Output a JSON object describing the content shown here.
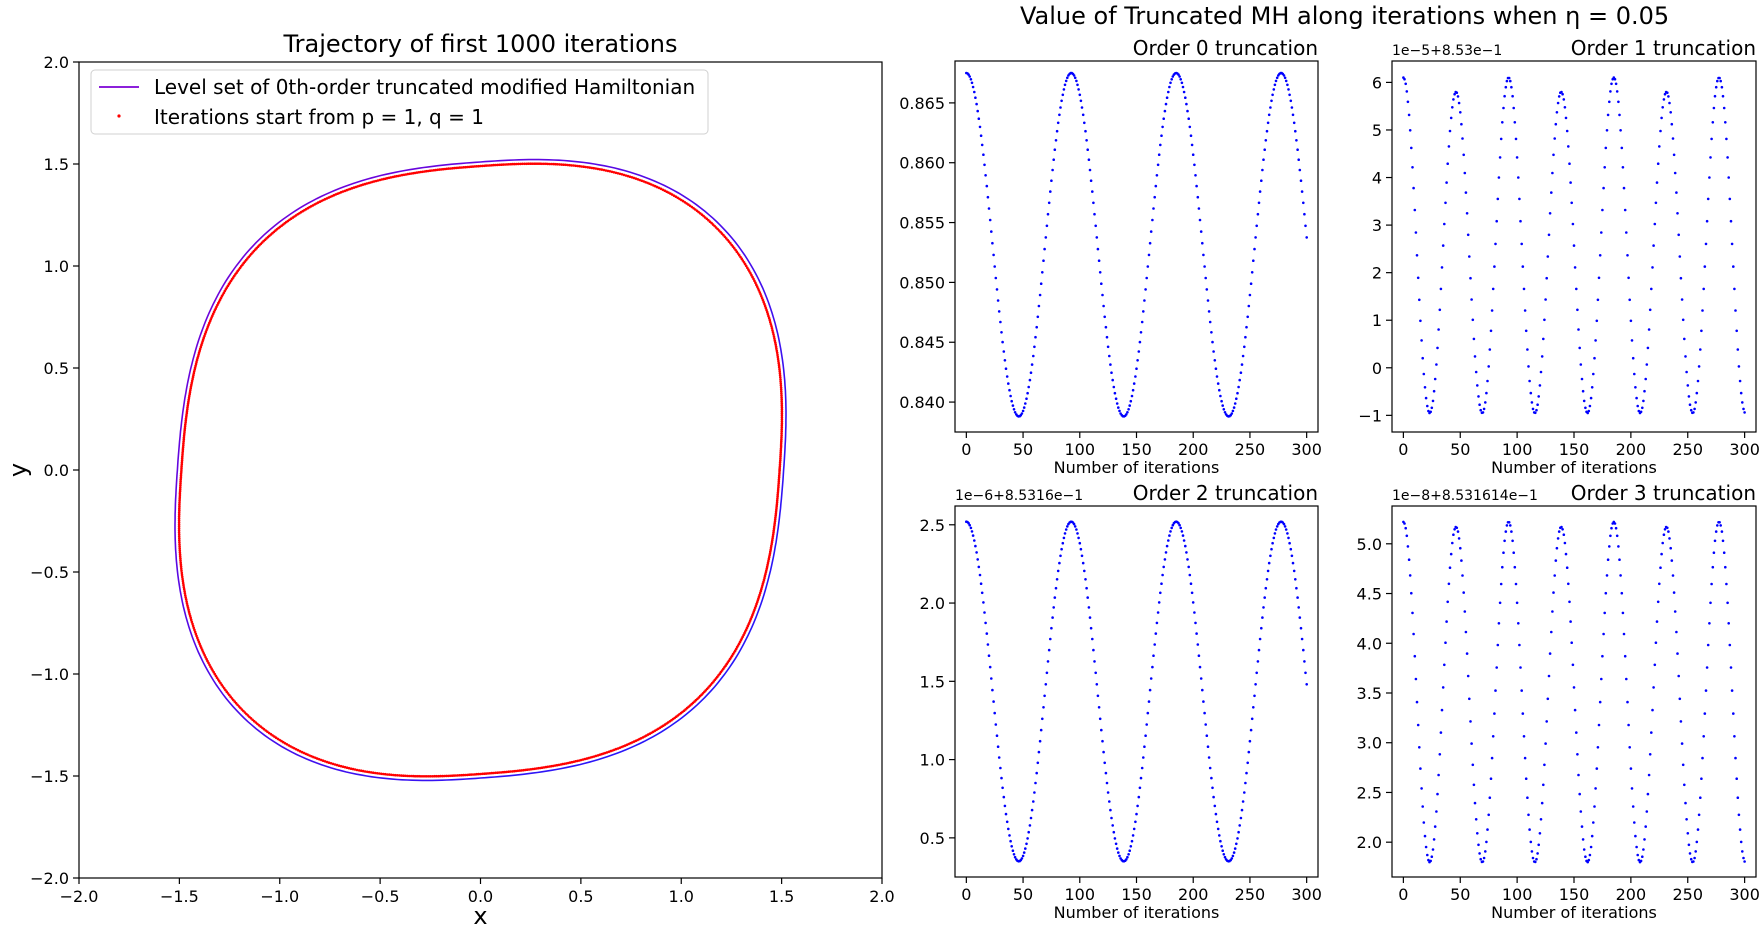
{
  "figure": {
    "suptitle": "Value of Truncated MH along iterations when η = 0.05"
  },
  "chart_data": [
    {
      "type": "line",
      "title": "Trajectory of first 1000 iterations",
      "xlabel": "x",
      "ylabel": "y",
      "xlim": [
        -2.0,
        2.0
      ],
      "ylim": [
        -2.0,
        2.0
      ],
      "xticks": [
        "−2.0",
        "−1.5",
        "−1.0",
        "−0.5",
        "0.0",
        "0.5",
        "1.0",
        "1.5",
        "2.0"
      ],
      "yticks": [
        "2.0",
        "1.5",
        "1.0",
        "0.5",
        "0.0",
        "−0.5",
        "−1.0",
        "−1.5",
        "−2.0"
      ],
      "legend_position": "top-left",
      "series": [
        {
          "name": "Level set of 0th-order truncated modified Hamiltonian",
          "style": "solid line",
          "color_start": "#7b00d4",
          "color_end": "#1a1aff",
          "description_points": [
            {
              "x": 0.0,
              "y": 1.51
            },
            {
              "x": 1.51,
              "y": 0.0
            },
            {
              "x": 0.0,
              "y": -1.51
            },
            {
              "x": -1.51,
              "y": 0.0
            }
          ]
        },
        {
          "name": "Iterations start from p = 1, q = 1",
          "style": "dots",
          "color": "#ff0000",
          "description_points": [
            {
              "x": 0.0,
              "y": 1.49
            },
            {
              "x": 1.49,
              "y": 0.0
            },
            {
              "x": 0.0,
              "y": -1.49
            },
            {
              "x": -1.49,
              "y": 0.0
            }
          ]
        }
      ]
    },
    {
      "type": "scatter",
      "title": "Order 0 truncation",
      "xlabel": "Number of iterations",
      "offset_text": "",
      "xlim": [
        -10,
        310
      ],
      "ylim": [
        0.8375,
        0.8685
      ],
      "xticks": [
        0,
        50,
        100,
        150,
        200,
        250,
        300
      ],
      "yticks": [
        0.84,
        0.845,
        0.85,
        0.855,
        0.86,
        0.865
      ],
      "ytick_labels": [
        "0.840",
        "0.845",
        "0.850",
        "0.855",
        "0.860",
        "0.865"
      ],
      "color": "#0000ff",
      "n_points": 301,
      "y_max": 0.8675,
      "y_min": 0.8388,
      "period": 92.5,
      "phase_start": "max"
    },
    {
      "type": "scatter",
      "title": "Order 1 truncation",
      "xlabel": "Number of iterations",
      "offset_text": "1e−5+8.53e−1",
      "xlim": [
        -10,
        310
      ],
      "ylim": [
        -1.35,
        6.45
      ],
      "xticks": [
        0,
        50,
        100,
        150,
        200,
        250,
        300
      ],
      "yticks": [
        -1,
        0,
        1,
        2,
        3,
        4,
        5,
        6
      ],
      "ytick_labels": [
        "−1",
        "0",
        "1",
        "2",
        "3",
        "4",
        "5",
        "6"
      ],
      "color": "#0000ff",
      "n_points": 301,
      "y_max_primary": 6.1,
      "y_max_secondary": 5.8,
      "y_min": -0.95,
      "period": 46.25,
      "phase_start": "max"
    },
    {
      "type": "scatter",
      "title": "Order 2 truncation",
      "xlabel": "Number of iterations",
      "offset_text": "1e−6+8.5316e−1",
      "xlim": [
        -10,
        310
      ],
      "ylim": [
        0.25,
        2.62
      ],
      "xticks": [
        0,
        50,
        100,
        150,
        200,
        250,
        300
      ],
      "yticks": [
        0.5,
        1.0,
        1.5,
        2.0,
        2.5
      ],
      "ytick_labels": [
        "0.5",
        "1.0",
        "1.5",
        "2.0",
        "2.5"
      ],
      "color": "#0000ff",
      "n_points": 301,
      "y_max": 2.52,
      "y_min": 0.35,
      "period": 92.5,
      "phase_start": "max"
    },
    {
      "type": "scatter",
      "title": "Order 3 truncation",
      "xlabel": "Number of iterations",
      "offset_text": "1e−8+8.531614e−1",
      "xlim": [
        -10,
        310
      ],
      "ylim": [
        1.65,
        5.38
      ],
      "xticks": [
        0,
        50,
        100,
        150,
        200,
        250,
        300
      ],
      "yticks": [
        2.0,
        2.5,
        3.0,
        3.5,
        4.0,
        4.5,
        5.0
      ],
      "ytick_labels": [
        "2.0",
        "2.5",
        "3.0",
        "3.5",
        "4.0",
        "4.5",
        "5.0"
      ],
      "color": "#0000ff",
      "n_points": 301,
      "y_max_primary": 5.22,
      "y_max_secondary": 5.17,
      "y_min": 1.8,
      "period": 46.25,
      "phase_start": "max"
    }
  ]
}
